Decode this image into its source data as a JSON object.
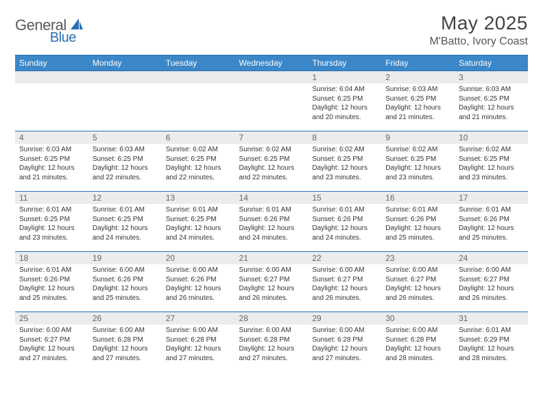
{
  "logo": {
    "general": "General",
    "blue": "Blue"
  },
  "title": "May 2025",
  "location": "M'Batto, Ivory Coast",
  "day_headers": [
    "Sunday",
    "Monday",
    "Tuesday",
    "Wednesday",
    "Thursday",
    "Friday",
    "Saturday"
  ],
  "colors": {
    "header_bg": "#3b87c8",
    "header_text": "#ffffff",
    "border": "#2a6fb5",
    "daynum_bg": "#ececec",
    "body_text": "#333333",
    "page_bg": "#ffffff",
    "logo_gray": "#5a5a5a",
    "logo_blue": "#2a6fb5"
  },
  "typography": {
    "title_fontsize": 28,
    "location_fontsize": 16,
    "header_fontsize": 12,
    "daynum_fontsize": 12,
    "body_fontsize": 10
  },
  "weeks": [
    [
      {
        "n": "",
        "sr": "",
        "ss": "",
        "dl": ""
      },
      {
        "n": "",
        "sr": "",
        "ss": "",
        "dl": ""
      },
      {
        "n": "",
        "sr": "",
        "ss": "",
        "dl": ""
      },
      {
        "n": "",
        "sr": "",
        "ss": "",
        "dl": ""
      },
      {
        "n": "1",
        "sr": "Sunrise: 6:04 AM",
        "ss": "Sunset: 6:25 PM",
        "dl": "Daylight: 12 hours and 20 minutes."
      },
      {
        "n": "2",
        "sr": "Sunrise: 6:03 AM",
        "ss": "Sunset: 6:25 PM",
        "dl": "Daylight: 12 hours and 21 minutes."
      },
      {
        "n": "3",
        "sr": "Sunrise: 6:03 AM",
        "ss": "Sunset: 6:25 PM",
        "dl": "Daylight: 12 hours and 21 minutes."
      }
    ],
    [
      {
        "n": "4",
        "sr": "Sunrise: 6:03 AM",
        "ss": "Sunset: 6:25 PM",
        "dl": "Daylight: 12 hours and 21 minutes."
      },
      {
        "n": "5",
        "sr": "Sunrise: 6:03 AM",
        "ss": "Sunset: 6:25 PM",
        "dl": "Daylight: 12 hours and 22 minutes."
      },
      {
        "n": "6",
        "sr": "Sunrise: 6:02 AM",
        "ss": "Sunset: 6:25 PM",
        "dl": "Daylight: 12 hours and 22 minutes."
      },
      {
        "n": "7",
        "sr": "Sunrise: 6:02 AM",
        "ss": "Sunset: 6:25 PM",
        "dl": "Daylight: 12 hours and 22 minutes."
      },
      {
        "n": "8",
        "sr": "Sunrise: 6:02 AM",
        "ss": "Sunset: 6:25 PM",
        "dl": "Daylight: 12 hours and 23 minutes."
      },
      {
        "n": "9",
        "sr": "Sunrise: 6:02 AM",
        "ss": "Sunset: 6:25 PM",
        "dl": "Daylight: 12 hours and 23 minutes."
      },
      {
        "n": "10",
        "sr": "Sunrise: 6:02 AM",
        "ss": "Sunset: 6:25 PM",
        "dl": "Daylight: 12 hours and 23 minutes."
      }
    ],
    [
      {
        "n": "11",
        "sr": "Sunrise: 6:01 AM",
        "ss": "Sunset: 6:25 PM",
        "dl": "Daylight: 12 hours and 23 minutes."
      },
      {
        "n": "12",
        "sr": "Sunrise: 6:01 AM",
        "ss": "Sunset: 6:25 PM",
        "dl": "Daylight: 12 hours and 24 minutes."
      },
      {
        "n": "13",
        "sr": "Sunrise: 6:01 AM",
        "ss": "Sunset: 6:25 PM",
        "dl": "Daylight: 12 hours and 24 minutes."
      },
      {
        "n": "14",
        "sr": "Sunrise: 6:01 AM",
        "ss": "Sunset: 6:26 PM",
        "dl": "Daylight: 12 hours and 24 minutes."
      },
      {
        "n": "15",
        "sr": "Sunrise: 6:01 AM",
        "ss": "Sunset: 6:26 PM",
        "dl": "Daylight: 12 hours and 24 minutes."
      },
      {
        "n": "16",
        "sr": "Sunrise: 6:01 AM",
        "ss": "Sunset: 6:26 PM",
        "dl": "Daylight: 12 hours and 25 minutes."
      },
      {
        "n": "17",
        "sr": "Sunrise: 6:01 AM",
        "ss": "Sunset: 6:26 PM",
        "dl": "Daylight: 12 hours and 25 minutes."
      }
    ],
    [
      {
        "n": "18",
        "sr": "Sunrise: 6:01 AM",
        "ss": "Sunset: 6:26 PM",
        "dl": "Daylight: 12 hours and 25 minutes."
      },
      {
        "n": "19",
        "sr": "Sunrise: 6:00 AM",
        "ss": "Sunset: 6:26 PM",
        "dl": "Daylight: 12 hours and 25 minutes."
      },
      {
        "n": "20",
        "sr": "Sunrise: 6:00 AM",
        "ss": "Sunset: 6:26 PM",
        "dl": "Daylight: 12 hours and 26 minutes."
      },
      {
        "n": "21",
        "sr": "Sunrise: 6:00 AM",
        "ss": "Sunset: 6:27 PM",
        "dl": "Daylight: 12 hours and 26 minutes."
      },
      {
        "n": "22",
        "sr": "Sunrise: 6:00 AM",
        "ss": "Sunset: 6:27 PM",
        "dl": "Daylight: 12 hours and 26 minutes."
      },
      {
        "n": "23",
        "sr": "Sunrise: 6:00 AM",
        "ss": "Sunset: 6:27 PM",
        "dl": "Daylight: 12 hours and 26 minutes."
      },
      {
        "n": "24",
        "sr": "Sunrise: 6:00 AM",
        "ss": "Sunset: 6:27 PM",
        "dl": "Daylight: 12 hours and 26 minutes."
      }
    ],
    [
      {
        "n": "25",
        "sr": "Sunrise: 6:00 AM",
        "ss": "Sunset: 6:27 PM",
        "dl": "Daylight: 12 hours and 27 minutes."
      },
      {
        "n": "26",
        "sr": "Sunrise: 6:00 AM",
        "ss": "Sunset: 6:28 PM",
        "dl": "Daylight: 12 hours and 27 minutes."
      },
      {
        "n": "27",
        "sr": "Sunrise: 6:00 AM",
        "ss": "Sunset: 6:28 PM",
        "dl": "Daylight: 12 hours and 27 minutes."
      },
      {
        "n": "28",
        "sr": "Sunrise: 6:00 AM",
        "ss": "Sunset: 6:28 PM",
        "dl": "Daylight: 12 hours and 27 minutes."
      },
      {
        "n": "29",
        "sr": "Sunrise: 6:00 AM",
        "ss": "Sunset: 6:28 PM",
        "dl": "Daylight: 12 hours and 27 minutes."
      },
      {
        "n": "30",
        "sr": "Sunrise: 6:00 AM",
        "ss": "Sunset: 6:28 PM",
        "dl": "Daylight: 12 hours and 28 minutes."
      },
      {
        "n": "31",
        "sr": "Sunrise: 6:01 AM",
        "ss": "Sunset: 6:29 PM",
        "dl": "Daylight: 12 hours and 28 minutes."
      }
    ]
  ]
}
